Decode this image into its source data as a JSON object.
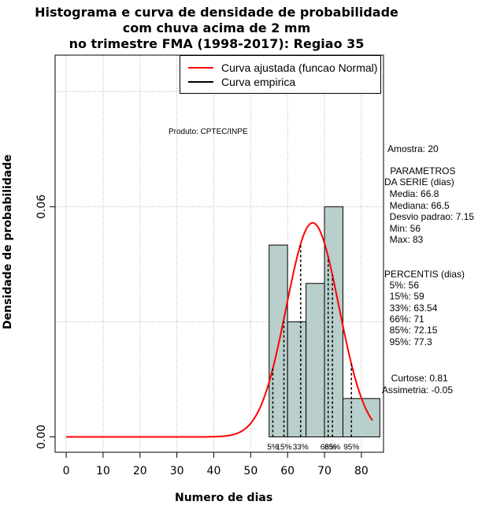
{
  "title_lines": [
    "Histograma e curva de densidade de probabilidade",
    "com chuva acima de 2 mm",
    "no trimestre FMA (1998-2017): Regiao 35"
  ],
  "produto": "Produto: CPTEC/INPE",
  "legend": {
    "fit_label": "Curva ajustada (funcao Normal)",
    "emp_label": "Curva empirica",
    "fit_color": "#ff0000",
    "emp_color": "#000000"
  },
  "stats": {
    "amostra": "Amostra: 20",
    "params_title": [
      " PARAMETROS",
      "DA SERIE (dias)"
    ],
    "params": [
      "  Media: 66.8",
      "  Mediana: 66.5",
      "  Desvio padrao: 7.15",
      "  Min: 56",
      "  Max: 83"
    ],
    "percentis_title": "PERCENTIS (dias)",
    "percentis": [
      "  5%: 56",
      "  15%: 59",
      "  33%: 63.54",
      "  66%: 71",
      "  85%: 72.15",
      "  95%: 77.3"
    ],
    "curtose": "  Curtose: 0.81",
    "assimetria": "Assimetria: -0.05"
  },
  "chart_data": {
    "type": "bar",
    "xlabel": "Numero de dias",
    "ylabel": "Densidade de probabilidade",
    "xlim": [
      -3,
      86
    ],
    "ylim": [
      -0.004,
      0.0995
    ],
    "x_ticks": [
      0,
      10,
      20,
      30,
      40,
      50,
      60,
      70,
      80
    ],
    "y_ticks": [
      0,
      0.06
    ],
    "y_tick_labels": [
      "0.00",
      "0.06"
    ],
    "grid": true,
    "bins": [
      {
        "x0": 55,
        "x1": 60,
        "density": 0.05
      },
      {
        "x0": 60,
        "x1": 65,
        "density": 0.03
      },
      {
        "x0": 65,
        "x1": 70,
        "density": 0.04
      },
      {
        "x0": 70,
        "x1": 75,
        "density": 0.06
      },
      {
        "x0": 75,
        "x1": 85,
        "density": 0.01
      }
    ],
    "bar_color": "#b8cfcc",
    "normal_fit": {
      "mean": 66.8,
      "sd": 7.15,
      "x_from": 0,
      "x_to": 83
    },
    "percentiles": [
      {
        "label": "5%",
        "value": 56
      },
      {
        "label": "15%",
        "value": 59
      },
      {
        "label": "33%",
        "value": 63.54
      },
      {
        "label": "66%",
        "value": 71
      },
      {
        "label": "85%",
        "value": 72.15
      },
      {
        "label": "95%",
        "value": 77.3
      }
    ]
  }
}
